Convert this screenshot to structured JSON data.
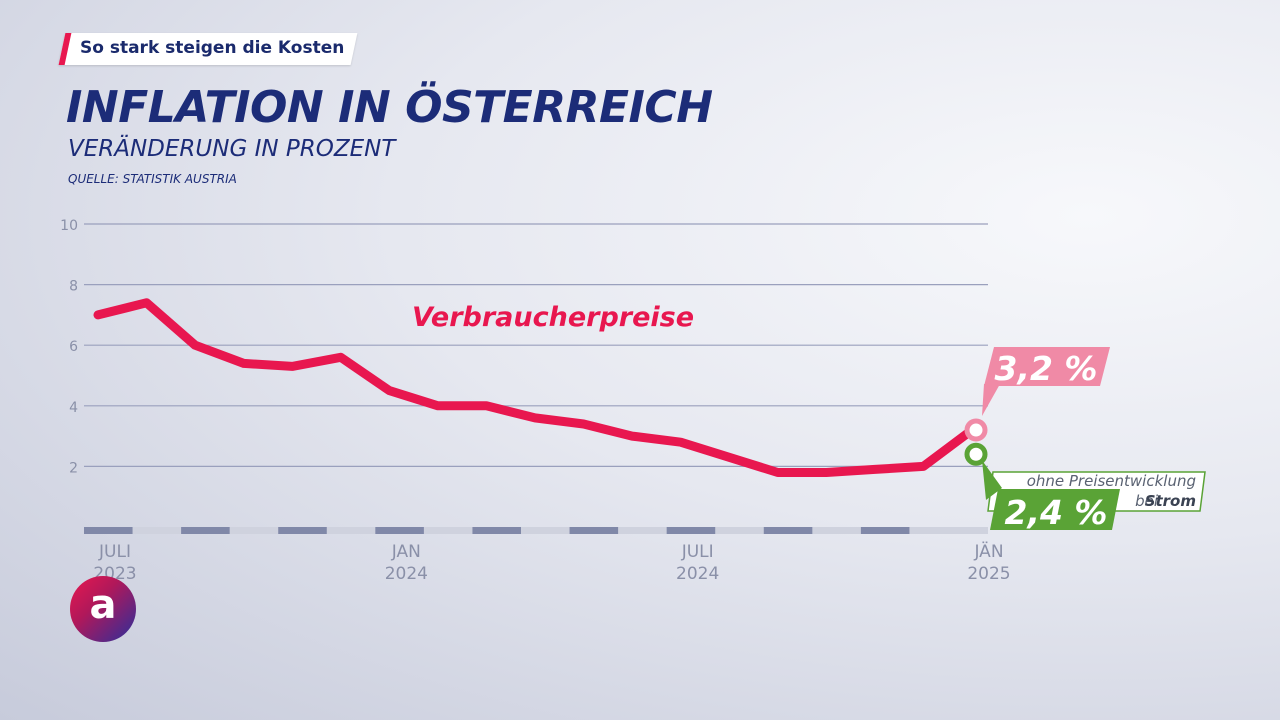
{
  "header": {
    "tag": "So stark steigen die Kosten",
    "title": "INFLATION IN ÖSTERREICH",
    "subtitle": "VERÄNDERUNG IN PROZENT",
    "source": "QUELLE: STATISTIK AUSTRIA"
  },
  "colors": {
    "line": "#e8174f",
    "callout_main": "#f08aa6",
    "callout_alt": "#5aa336",
    "axis_text": "#8a90a8",
    "title": "#1c2c78"
  },
  "logo": {
    "letter": "a"
  },
  "chart_data": {
    "type": "line",
    "ylim": [
      0,
      10
    ],
    "yticks": [
      2,
      4,
      6,
      8,
      10
    ],
    "grid": true,
    "xlabels": [
      {
        "index": 0,
        "line1": "JULI",
        "line2": "2023"
      },
      {
        "index": 6,
        "line1": "JAN",
        "line2": "2024"
      },
      {
        "index": 12,
        "line1": "JULI",
        "line2": "2024"
      },
      {
        "index": 18,
        "line1": "JÄN",
        "line2": "2025"
      }
    ],
    "x": [
      "2023-07",
      "2023-08",
      "2023-09",
      "2023-10",
      "2023-11",
      "2023-12",
      "2024-01",
      "2024-02",
      "2024-03",
      "2024-04",
      "2024-05",
      "2024-06",
      "2024-07",
      "2024-08",
      "2024-09",
      "2024-10",
      "2024-11",
      "2024-12",
      "2025-01"
    ],
    "series": [
      {
        "name": "Verbraucherpreise",
        "values": [
          7.0,
          7.4,
          6.0,
          5.4,
          5.3,
          5.6,
          4.5,
          4.0,
          4.0,
          3.6,
          3.4,
          3.0,
          2.8,
          2.3,
          1.8,
          1.8,
          1.9,
          2.0,
          3.2
        ]
      }
    ],
    "annotations": [
      {
        "label": "3,2 %",
        "value": 3.2
      },
      {
        "label": "2,4 %",
        "value": 2.4,
        "note_line1": "ohne Preisentwicklung",
        "note_line2_plain": "bei ",
        "note_line2_bold": "Strom"
      }
    ]
  }
}
